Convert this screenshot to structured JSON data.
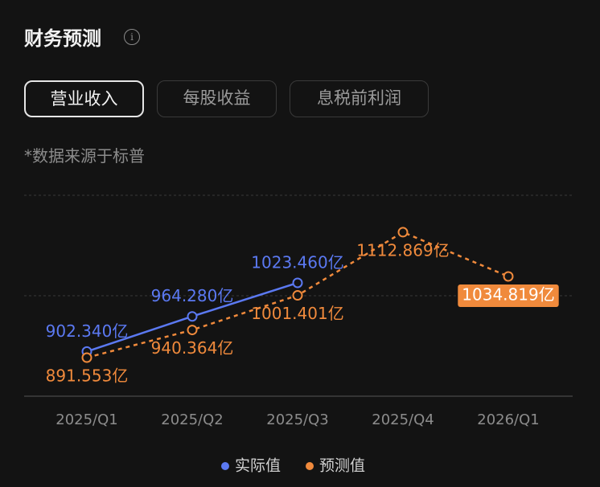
{
  "header": {
    "title": "财务预测",
    "tabs": [
      "营业收入",
      "每股收益",
      "息税前利润"
    ],
    "note": "*数据来源于标普"
  },
  "chart_data": {
    "type": "line",
    "categories": [
      "2025/Q1",
      "2025/Q2",
      "2025/Q3",
      "2025/Q4",
      "2026/Q1"
    ],
    "series": [
      {
        "name": "实际值",
        "color": "#5b79f2",
        "dashed": false,
        "values": [
          902.34,
          964.28,
          1023.46,
          null,
          null
        ],
        "value_labels": [
          "902.340亿",
          "964.280亿",
          "1023.460亿",
          null,
          null
        ]
      },
      {
        "name": "预测值",
        "color": "#f08a3c",
        "dashed": true,
        "values": [
          891.553,
          940.364,
          1001.401,
          1112.869,
          1034.819
        ],
        "value_labels": [
          "891.553亿",
          "940.364亿",
          "1001.401亿",
          "1112.869亿",
          "1034.819亿"
        ]
      }
    ],
    "ylim": [
      823.5,
      1178
    ],
    "grid": true
  }
}
